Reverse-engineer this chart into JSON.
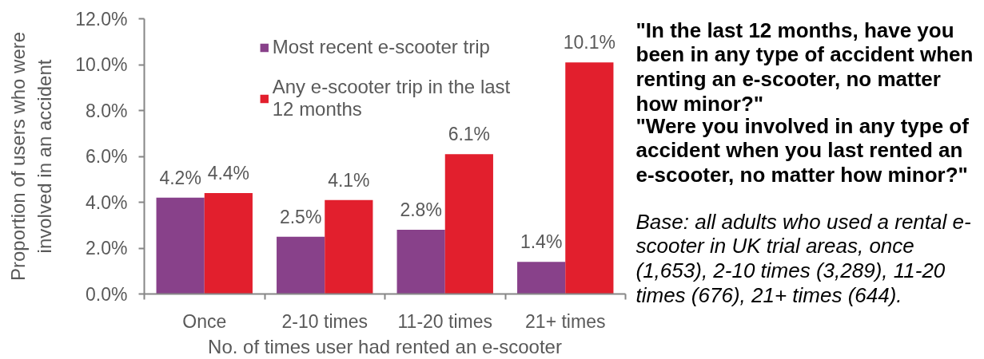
{
  "chart_data": {
    "type": "bar",
    "xlabel": "No. of times user had rented an e-scooter",
    "ylabel": "Proportion of users who were involved in an accident",
    "categories": [
      "Once",
      "2-10 times",
      "11-20 times",
      "21+ times"
    ],
    "series": [
      {
        "name": "Most recent e-scooter trip",
        "color": "#88418a",
        "values": [
          4.2,
          2.5,
          2.8,
          1.4
        ],
        "value_labels": [
          "4.2%",
          "2.5%",
          "2.8%",
          "1.4%"
        ]
      },
      {
        "name": "Any e-scooter trip in the last 12 months",
        "color": "#e21f2d",
        "values": [
          4.4,
          4.1,
          6.1,
          10.1
        ],
        "value_labels": [
          "4.4%",
          "4.1%",
          "6.1%",
          "10.1%"
        ]
      }
    ],
    "ylim": [
      0,
      12
    ],
    "yticks": [
      {
        "value": 0,
        "label": "0.0%"
      },
      {
        "value": 2,
        "label": "2.0%"
      },
      {
        "value": 4,
        "label": "4.0%"
      },
      {
        "value": 6,
        "label": "6.0%"
      },
      {
        "value": 8,
        "label": "8.0%"
      },
      {
        "value": 10,
        "label": "10.0%"
      },
      {
        "value": 12,
        "label": "12.0%"
      }
    ],
    "grid": false,
    "legend": "top",
    "annotations": [
      "\"In the last 12 months, have you been in any type of accident when renting an e-scooter, no matter how minor?\"",
      "\"Were you involved in any type of accident when you last rented an e-scooter, no matter how minor?\"",
      "Base: all adults who used a rental e-scooter in UK trial areas, once (1,653), 2-10 times (3,289), 11-20 times (676), 21+ times (644)."
    ]
  }
}
